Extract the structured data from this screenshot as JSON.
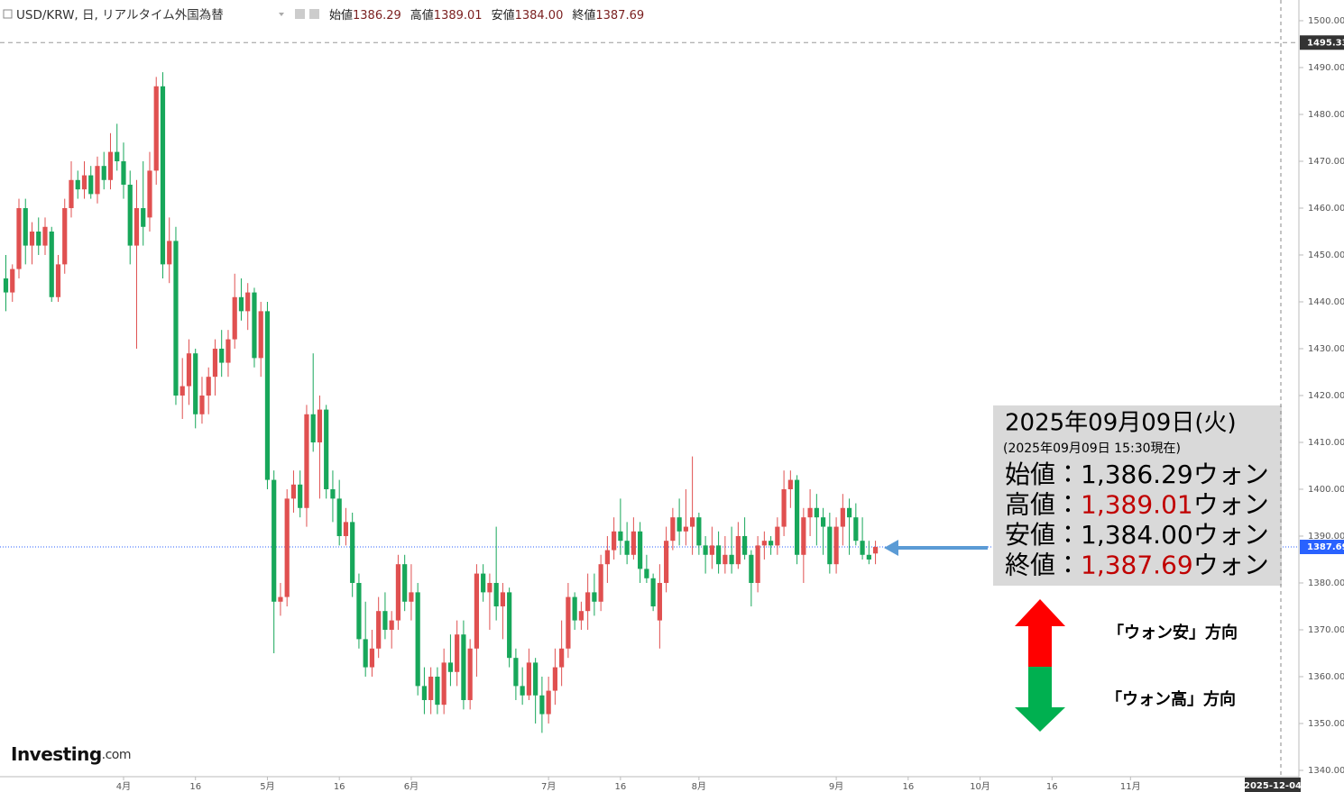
{
  "chart_data": {
    "type": "candlestick",
    "title": "USD/KRW, 日, リアルタイム外国為替",
    "legend_ohlc": [
      {
        "label": "始値",
        "value": "1386.29"
      },
      {
        "label": "高値",
        "value": "1389.01"
      },
      {
        "label": "安値",
        "value": "1384.00"
      },
      {
        "label": "終値",
        "value": "1387.69"
      }
    ],
    "categories": [
      null,
      null,
      null,
      null,
      null,
      null,
      null,
      null,
      null,
      null,
      null,
      null,
      null,
      null,
      null,
      null,
      null,
      null,
      "4月",
      null,
      null,
      null,
      null,
      null,
      null,
      null,
      null,
      null,
      null,
      "16",
      null,
      null,
      null,
      null,
      null,
      null,
      null,
      null,
      null,
      null,
      "5月",
      null,
      null,
      null,
      null,
      null,
      null,
      null,
      null,
      null,
      null,
      "16",
      null,
      null,
      null,
      null,
      null,
      null,
      null,
      null,
      null,
      null,
      "6月",
      null,
      null,
      null,
      null,
      null,
      null,
      null,
      null,
      null,
      null,
      null,
      null,
      null,
      null,
      null,
      null,
      null,
      null,
      null,
      null,
      "7月",
      null,
      null,
      null,
      null,
      null,
      null,
      null,
      null,
      null,
      null,
      "16",
      null,
      null,
      null,
      null,
      null,
      null,
      null,
      null,
      null,
      null,
      null,
      "8月",
      null,
      null,
      null,
      null,
      null,
      null,
      null,
      null,
      null,
      null,
      null,
      null,
      null,
      null,
      null,
      null,
      null,
      null,
      null,
      null,
      "9月",
      null,
      null,
      null,
      null,
      null,
      null,
      null,
      null,
      null,
      null,
      "16",
      null,
      null,
      null,
      null,
      null,
      null,
      null,
      null,
      null,
      null,
      "10月",
      null,
      null,
      null,
      null,
      null,
      null,
      null,
      null,
      null,
      null,
      "16",
      null,
      null,
      null,
      null,
      null,
      null,
      null,
      null,
      null,
      null,
      null,
      "11月",
      null,
      null,
      null,
      null,
      null,
      null,
      null,
      null,
      null,
      null,
      null,
      null,
      null,
      null,
      null,
      null,
      null,
      null,
      null,
      null,
      null,
      null,
      "2025-12-04"
    ],
    "open": [
      1445,
      1442,
      1447,
      1460,
      1452,
      1455,
      1452,
      1455,
      1441,
      1448,
      1460,
      1466,
      1464,
      1467,
      1463,
      1469,
      1466,
      1472,
      1470,
      1465,
      1452,
      1460,
      1458,
      1468,
      1486,
      1448,
      1453,
      1420,
      1422,
      1429,
      1416,
      1420,
      1424,
      1430,
      1427,
      1432,
      1441,
      1438,
      1442,
      1428,
      1438,
      1402,
      1376,
      1377,
      1398,
      1401,
      1396,
      1416,
      1410,
      1417,
      1400,
      1398,
      1390,
      1393,
      1380,
      1368,
      1362,
      1366,
      1374,
      1370,
      1372,
      1384,
      1376,
      1378,
      1358,
      1355,
      1360,
      1354,
      1363,
      1361,
      1369,
      1355,
      1366,
      1382,
      1378,
      1380,
      1375,
      1378,
      1364,
      1358,
      1356,
      1363,
      1356,
      1352,
      1357,
      1362,
      1366,
      1377,
      1372,
      1374,
      1378,
      1376,
      1384,
      1387,
      1391,
      1389,
      1386,
      1391,
      1383,
      1381,
      1372,
      1380,
      1389,
      1394,
      1391,
      1392,
      1394,
      1388,
      1386,
      1388,
      1384,
      1386,
      1384,
      1390,
      1386,
      1380,
      1388,
      1389,
      1388,
      1392,
      1400,
      1402,
      1386,
      1394,
      1396,
      1394,
      1392,
      1384,
      1392,
      1396,
      1394,
      1389,
      1386,
      1386.29,
      null,
      null,
      null,
      null,
      null,
      null,
      null,
      null,
      null,
      null,
      null,
      null,
      null,
      null,
      null,
      null,
      null,
      null,
      null,
      null,
      null,
      null,
      null,
      null,
      null,
      null,
      null,
      null,
      null,
      null,
      null,
      null,
      null,
      null,
      null,
      null,
      null,
      null,
      null,
      null,
      null,
      null,
      null,
      null,
      null,
      null,
      null,
      null,
      null,
      null,
      null,
      null,
      null,
      null,
      null,
      null,
      null,
      null,
      null,
      null,
      null,
      null
    ],
    "high": [
      1450,
      1448,
      1462,
      1462,
      1457,
      1458,
      1458,
      1456,
      1450,
      1462,
      1470,
      1468,
      1470,
      1469,
      1471,
      1472,
      1476,
      1478,
      1474,
      1468,
      1466,
      1470,
      1472,
      1488,
      1489,
      1458,
      1456,
      1428,
      1432,
      1430,
      1424,
      1426,
      1432,
      1434,
      1434,
      1446,
      1445,
      1444,
      1443,
      1440,
      1440,
      1404,
      1380,
      1400,
      1404,
      1404,
      1418,
      1429,
      1420,
      1418,
      1404,
      1402,
      1396,
      1395,
      1382,
      1376,
      1370,
      1377,
      1378,
      1374,
      1386,
      1386,
      1384,
      1380,
      1362,
      1362,
      1362,
      1366,
      1369,
      1372,
      1372,
      1368,
      1384,
      1384,
      1382,
      1392,
      1380,
      1379,
      1366,
      1362,
      1366,
      1364,
      1360,
      1360,
      1366,
      1372,
      1380,
      1378,
      1376,
      1382,
      1382,
      1386,
      1390,
      1394,
      1398,
      1393,
      1394,
      1393,
      1386,
      1382,
      1384,
      1392,
      1396,
      1398,
      1400,
      1407,
      1395,
      1390,
      1392,
      1391,
      1390,
      1392,
      1393,
      1394,
      1387,
      1390,
      1391,
      1390,
      1394,
      1404,
      1404,
      1403,
      1396,
      1400,
      1399,
      1396,
      1395,
      1394,
      1399,
      1398,
      1397,
      1394,
      1389,
      1389.01,
      null,
      null,
      null,
      null,
      null,
      null,
      null,
      null,
      null,
      null,
      null,
      null,
      null,
      null,
      null,
      null,
      null,
      null,
      null,
      null,
      null,
      null,
      null,
      null,
      null,
      null,
      null,
      null,
      null,
      null,
      null,
      null,
      null,
      null,
      null,
      null,
      null,
      null,
      null,
      null,
      null,
      null,
      null,
      null,
      null,
      null,
      null,
      null,
      null,
      null,
      null,
      null,
      null,
      null,
      null,
      null,
      null,
      null,
      null,
      null,
      null,
      null
    ],
    "low": [
      1438,
      1440,
      1445,
      1448,
      1448,
      1450,
      1450,
      1440,
      1440,
      1446,
      1458,
      1462,
      1462,
      1462,
      1461,
      1464,
      1464,
      1468,
      1462,
      1448,
      1430,
      1452,
      1455,
      1465,
      1445,
      1444,
      1418,
      1415,
      1418,
      1413,
      1414,
      1416,
      1420,
      1424,
      1424,
      1430,
      1436,
      1434,
      1426,
      1424,
      1400,
      1365,
      1373,
      1375,
      1395,
      1394,
      1392,
      1408,
      1398,
      1398,
      1393,
      1388,
      1388,
      1377,
      1366,
      1360,
      1360,
      1364,
      1368,
      1366,
      1370,
      1374,
      1372,
      1356,
      1352,
      1352,
      1352,
      1352,
      1358,
      1358,
      1353,
      1353,
      1360,
      1376,
      1370,
      1372,
      1368,
      1362,
      1355,
      1354,
      1355,
      1350,
      1348,
      1350,
      1354,
      1358,
      1364,
      1370,
      1370,
      1370,
      1373,
      1374,
      1380,
      1385,
      1386,
      1384,
      1385,
      1380,
      1380,
      1374,
      1366,
      1378,
      1387,
      1388,
      1388,
      1386,
      1386,
      1382,
      1383,
      1382,
      1382,
      1382,
      1383,
      1385,
      1375,
      1378,
      1385,
      1386,
      1386,
      1390,
      1396,
      1384,
      1380,
      1390,
      1388,
      1386,
      1382,
      1382,
      1388,
      1386,
      1388,
      1385,
      1384,
      1384.0,
      null,
      null,
      null,
      null,
      null,
      null,
      null,
      null,
      null,
      null,
      null,
      null,
      null,
      null,
      null,
      null,
      null,
      null,
      null,
      null,
      null,
      null,
      null,
      null,
      null,
      null,
      null,
      null,
      null,
      null,
      null,
      null,
      null,
      null,
      null,
      null,
      null,
      null,
      null,
      null,
      null,
      null,
      null,
      null,
      null,
      null,
      null,
      null,
      null,
      null,
      null,
      null,
      null,
      null,
      null,
      null,
      null,
      null,
      null,
      null,
      null,
      null
    ],
    "close": [
      1442,
      1447,
      1460,
      1452,
      1455,
      1452,
      1456,
      1441,
      1448,
      1460,
      1466,
      1464,
      1467,
      1463,
      1469,
      1466,
      1472,
      1470,
      1465,
      1452,
      1460,
      1456,
      1468,
      1486,
      1448,
      1453,
      1420,
      1422,
      1429,
      1416,
      1420,
      1424,
      1430,
      1427,
      1432,
      1441,
      1438,
      1442,
      1428,
      1438,
      1402,
      1376,
      1377,
      1398,
      1401,
      1396,
      1416,
      1410,
      1417,
      1400,
      1398,
      1390,
      1393,
      1380,
      1368,
      1362,
      1366,
      1374,
      1370,
      1372,
      1384,
      1376,
      1378,
      1358,
      1355,
      1360,
      1354,
      1363,
      1361,
      1369,
      1355,
      1366,
      1382,
      1378,
      1380,
      1375,
      1378,
      1364,
      1358,
      1356,
      1363,
      1356,
      1352,
      1357,
      1362,
      1366,
      1377,
      1372,
      1374,
      1378,
      1376,
      1384,
      1387,
      1391,
      1389,
      1386,
      1391,
      1383,
      1381,
      1375,
      1380,
      1389,
      1394,
      1391,
      1392,
      1394,
      1388,
      1386,
      1388,
      1384,
      1386,
      1384,
      1390,
      1386,
      1380,
      1388,
      1389,
      1388,
      1392,
      1400,
      1402,
      1386,
      1394,
      1396,
      1394,
      1392,
      1384,
      1392,
      1396,
      1394,
      1389,
      1386,
      1385,
      1387.69,
      null,
      null,
      null,
      null,
      null,
      null,
      null,
      null,
      null,
      null,
      null,
      null,
      null,
      null,
      null,
      null,
      null,
      null,
      null,
      null,
      null,
      null,
      null,
      null,
      null,
      null,
      null,
      null,
      null,
      null,
      null,
      null,
      null,
      null,
      null,
      null,
      null,
      null,
      null,
      null,
      null,
      null,
      null,
      null,
      null,
      null,
      null,
      null,
      null,
      null,
      null,
      null,
      null,
      null,
      null,
      null,
      null,
      null,
      null,
      null,
      null,
      null
    ],
    "up_color": "#e05050",
    "down_color": "#17a75a",
    "ylim": [
      1338.65,
      1504.42
    ],
    "yticks": [
      {
        "value": 1340,
        "label": "1340.00"
      },
      {
        "value": 1350,
        "label": "1350.00"
      },
      {
        "value": 1360,
        "label": "1360.00"
      },
      {
        "value": 1370,
        "label": "1370.00"
      },
      {
        "value": 1380,
        "label": "1380.00"
      },
      {
        "value": 1390,
        "label": "1390.00"
      },
      {
        "value": 1400,
        "label": "1400.00"
      },
      {
        "value": 1410,
        "label": "1410.00"
      },
      {
        "value": 1420,
        "label": "1420.00"
      },
      {
        "value": 1430,
        "label": "1430.00"
      },
      {
        "value": 1440,
        "label": "1440.00"
      },
      {
        "value": 1450,
        "label": "1450.00"
      },
      {
        "value": 1460,
        "label": "1460.00"
      },
      {
        "value": 1470,
        "label": "1470.00"
      },
      {
        "value": 1480,
        "label": "1480.00"
      },
      {
        "value": 1490,
        "label": "1490.00"
      },
      {
        "value": 1500,
        "label": "1500.00"
      }
    ],
    "reference_line": 1495.33,
    "reference_line_color": "#999999",
    "last_price_line": 1387.69,
    "last_price_color": "#2962ff"
  },
  "info_box": {
    "date": "2025年09月09日(火)",
    "as_of": "(2025年09月09日 15:30現在)",
    "rows": [
      {
        "label": "始値：",
        "value": "1,386.29",
        "unit": "ウォン",
        "value_color": "#000000"
      },
      {
        "label": "高値：",
        "value": "1,389.01",
        "unit": "ウォン",
        "value_color": "#c00000"
      },
      {
        "label": "安値：",
        "value": "1,384.00",
        "unit": "ウォン",
        "value_color": "#000000"
      },
      {
        "label": "終値：",
        "value": "1,387.69",
        "unit": "ウォン",
        "value_color": "#c00000"
      }
    ]
  },
  "annotations": {
    "up": "「ウォン安」方向",
    "down": "「ウォン高」方向"
  },
  "logo": {
    "name": "Investing",
    "suffix": ".com"
  }
}
